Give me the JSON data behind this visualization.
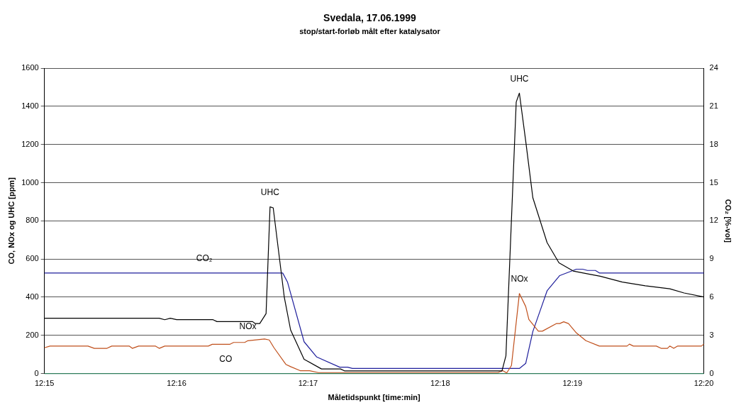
{
  "chart_data": {
    "type": "line",
    "title": "Svedala, 17.06.1999",
    "subtitle": "stop/start-forløb målt efter katalysator",
    "xlabel": "Måletidspunkt [time:min]",
    "ylabel": "CO, NOx og UHC [ppm]",
    "y2label": "CO₂ [%-vol]",
    "xlim": [
      12.25,
      12.3333
    ],
    "xticks": [
      {
        "value": 12.25,
        "label": "12:15"
      },
      {
        "value": 12.2667,
        "label": "12:16"
      },
      {
        "value": 12.2833,
        "label": "12:17"
      },
      {
        "value": 12.3,
        "label": "12:18"
      },
      {
        "value": 12.3167,
        "label": "12:19"
      },
      {
        "value": 12.3333,
        "label": "12:20"
      }
    ],
    "ylim": [
      0,
      1600
    ],
    "yticks": [
      0,
      200,
      400,
      600,
      800,
      1000,
      1200,
      1400,
      1600
    ],
    "y2lim": [
      0,
      24
    ],
    "y2ticks": [
      0,
      3,
      6,
      9,
      12,
      15,
      18,
      21,
      24
    ],
    "grid": "y",
    "legend": false,
    "marker": "none",
    "line_style": "solid",
    "series": [
      {
        "color": "#000000",
        "x": [
          12.25,
          12.2645,
          12.2652,
          12.2659,
          12.2667,
          12.2713,
          12.2718,
          12.2763,
          12.2766,
          12.2772,
          12.278,
          12.2785,
          12.2789,
          12.2803,
          12.2811,
          12.2828,
          12.285,
          12.2874,
          12.2879,
          12.3078,
          12.3083,
          12.3096,
          12.31,
          12.3108,
          12.3117,
          12.3135,
          12.315,
          12.3168,
          12.319,
          12.3202,
          12.323,
          12.3259,
          12.329,
          12.3308,
          12.3333
        ],
        "values": [
          290,
          290,
          282,
          290,
          282,
          282,
          272,
          272,
          262,
          262,
          314,
          873,
          868,
          400,
          228,
          75,
          24,
          24,
          14,
          14,
          93,
          1422,
          1469,
          1218,
          921,
          686,
          580,
          537,
          519,
          510,
          479,
          460,
          444,
          422,
          401
        ]
      },
      {
        "color": "#c0501c",
        "x": [
          12.25,
          12.2507,
          12.2555,
          12.2563,
          12.2579,
          12.2585,
          12.2607,
          12.2611,
          12.2619,
          12.264,
          12.2645,
          12.2652,
          12.2707,
          12.2712,
          12.2734,
          12.2739,
          12.2753,
          12.2757,
          12.2778,
          12.2784,
          12.279,
          12.2805,
          12.2811,
          12.2823,
          12.2835,
          12.2846,
          12.3073,
          12.3079,
          12.3084,
          12.309,
          12.31,
          12.3108,
          12.3112,
          12.3124,
          12.3129,
          12.3147,
          12.3151,
          12.3156,
          12.3162,
          12.3172,
          12.3184,
          12.3201,
          12.3236,
          12.3239,
          12.3244,
          12.3273,
          12.3279,
          12.3287,
          12.329,
          12.3295,
          12.33,
          12.333,
          12.3333
        ],
        "values": [
          135,
          144,
          144,
          132,
          132,
          144,
          144,
          132,
          144,
          144,
          132,
          144,
          144,
          153,
          153,
          163,
          163,
          172,
          181,
          176,
          135,
          48,
          36,
          15,
          15,
          5,
          5,
          15,
          3,
          42,
          419,
          351,
          283,
          222,
          222,
          262,
          262,
          271,
          262,
          213,
          172,
          144,
          144,
          154,
          144,
          144,
          132,
          132,
          144,
          132,
          144,
          144,
          154
        ]
      },
      {
        "color": "#1f1f9c",
        "axis": "y2",
        "x": [
          12.25,
          12.2801,
          12.2807,
          12.2828,
          12.2844,
          12.2873,
          12.2883,
          12.2889,
          12.31,
          12.3108,
          12.3117,
          12.3135,
          12.3151,
          12.3172,
          12.318,
          12.3186,
          12.3196,
          12.3201,
          12.3333
        ],
        "values": [
          7.9,
          7.9,
          7.2,
          2.5,
          1.3,
          0.5,
          0.5,
          0.4,
          0.4,
          0.8,
          3.3,
          6.5,
          7.7,
          8.2,
          8.2,
          8.1,
          8.1,
          7.9,
          7.9
        ]
      },
      {
        "color": "#2e7d5b",
        "x": [
          12.25,
          12.3333
        ],
        "values": [
          0,
          0
        ]
      }
    ],
    "annotations": [
      {
        "text": "UHC",
        "x": 12.2785,
        "y": 873
      },
      {
        "text": "UHC",
        "x": 12.31,
        "y": 1469
      },
      {
        "text": "CO₂",
        "x": 12.2702,
        "y": 527
      },
      {
        "text": "NOx",
        "x": 12.2757,
        "y": 172
      },
      {
        "text": "NOx",
        "x": 12.31,
        "y": 419
      },
      {
        "text": "CO",
        "x": 12.2729,
        "y": 0
      }
    ]
  }
}
